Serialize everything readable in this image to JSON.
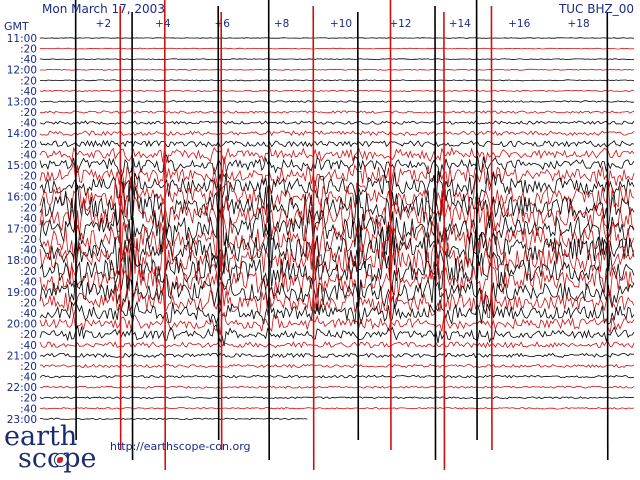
{
  "header": {
    "date": "Mon March 17, 2003",
    "station": "TUC BHZ_00",
    "timezone_label": "GMT"
  },
  "footer": {
    "logo_line1": "earth",
    "logo_line2": "scope",
    "url": "http://earthscope-con.org"
  },
  "colors": {
    "trace_a": "#000000",
    "trace_b": "#d01010",
    "text": "#1a2a8a",
    "grid": "#888888"
  },
  "chart_data": {
    "type": "line",
    "title": "",
    "xlabel": "",
    "ylabel": "GMT",
    "x_unit": "minutes after the hour",
    "xlim": [
      0,
      20
    ],
    "x_tick_labels": [
      "+2",
      "+4",
      "+6",
      "+8",
      "+10",
      "+12",
      "+14",
      "+16",
      "+18"
    ],
    "x_tick_values": [
      2,
      4,
      6,
      8,
      10,
      12,
      14,
      16,
      18
    ],
    "row_labels": [
      "11:00",
      ":20",
      ":40",
      "12:00",
      ":20",
      ":40",
      "13:00",
      ":20",
      ":40",
      "14:00",
      ":20",
      ":40",
      "15:00",
      ":20",
      ":40",
      "16:00",
      ":20",
      ":40",
      "17:00",
      ":20",
      ":40",
      "18:00",
      ":20",
      ":40",
      "19:00",
      ":20",
      ":40",
      "20:00",
      ":20",
      ":40",
      "21:00",
      ":20",
      ":40",
      "22:00",
      ":20",
      ":40",
      "23:00"
    ],
    "row_start": "11:00",
    "row_interval_minutes": 20,
    "row_count": 37,
    "last_row_fraction": 0.45,
    "trace_color_cycle": [
      "black",
      "red"
    ],
    "activity_by_row": [
      0.3,
      0.4,
      0.4,
      0.5,
      0.5,
      0.6,
      0.8,
      1.2,
      1.6,
      2.2,
      3.0,
      4.0,
      5.0,
      6.5,
      8.0,
      9.5,
      11,
      12,
      12,
      12,
      12,
      11.5,
      11,
      10.5,
      9.5,
      8.0,
      6.5,
      5.0,
      3.8,
      2.8,
      2.0,
      1.5,
      1.2,
      1.0,
      0.9,
      0.8,
      0.7
    ],
    "spike_positions_minutes": [
      1.2,
      2.7,
      3.1,
      4.2,
      6.0,
      6.1,
      7.7,
      9.2,
      10.7,
      11.8,
      13.3,
      13.6,
      14.7,
      15.2,
      19.1
    ],
    "grid": false,
    "legend": "none"
  }
}
